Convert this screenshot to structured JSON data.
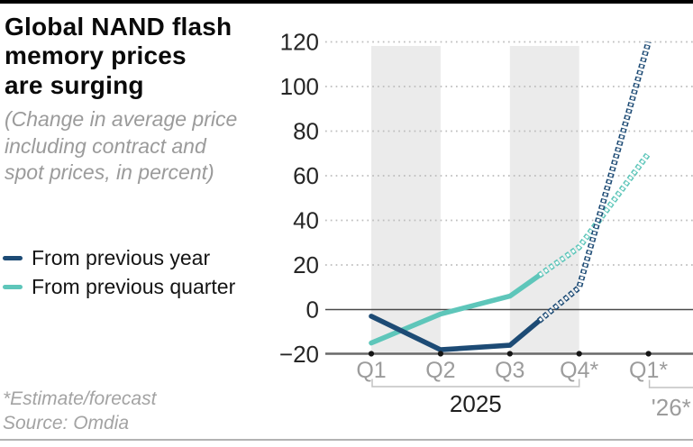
{
  "header": {
    "title_lines": [
      "Global NAND flash",
      "memory prices",
      "are surging"
    ],
    "subtitle_lines": [
      "(Change in average price",
      "including contract and",
      "spot prices, in percent)"
    ]
  },
  "legend": [
    {
      "label": "From previous year",
      "color": "#1d4b75"
    },
    {
      "label": "From previous quarter",
      "color": "#5ec6ba"
    }
  ],
  "footnotes": {
    "estimate": "*Estimate/forecast",
    "source": "Source: Omdia"
  },
  "chart_data": {
    "type": "line",
    "title": "Global NAND flash memory prices are surging",
    "subtitle": "Change in average price including contract and spot prices, in percent",
    "categories": [
      "Q1",
      "Q2",
      "Q3",
      "Q4*",
      "Q1*"
    ],
    "x_group_labels": [
      {
        "label": "2025",
        "from": "Q1",
        "to": "Q4*",
        "muted": false
      },
      {
        "label": "'26*",
        "from": "Q1*",
        "to": null,
        "muted": true
      }
    ],
    "series": [
      {
        "name": "From previous quarter",
        "color": "#5ec6ba",
        "values": [
          -15,
          -2,
          6,
          28,
          70
        ],
        "forecast_from_index": 3
      },
      {
        "name": "From previous year",
        "color": "#1d4b75",
        "values": [
          -3,
          -18,
          -16,
          10,
          120
        ],
        "forecast_from_index": 3
      }
    ],
    "ylim": [
      -20,
      120
    ],
    "yticks": [
      120,
      100,
      80,
      60,
      40,
      20,
      0,
      -20
    ],
    "grid": "dotted horizontal gridlines, solid zero line, solid baseline",
    "shaded_bands": [
      [
        "Q1",
        "Q2"
      ],
      [
        "Q3",
        "Q4*"
      ]
    ],
    "band_color": "#ebebeb",
    "grid_color": "#bdbdbd",
    "axis_text_color": "#9c9c9c",
    "tick_label_color": "#262626",
    "group_label_color": "#1f1f1f",
    "legend_position": "left",
    "note": "dashed chain segments indicate estimate/forecast"
  }
}
